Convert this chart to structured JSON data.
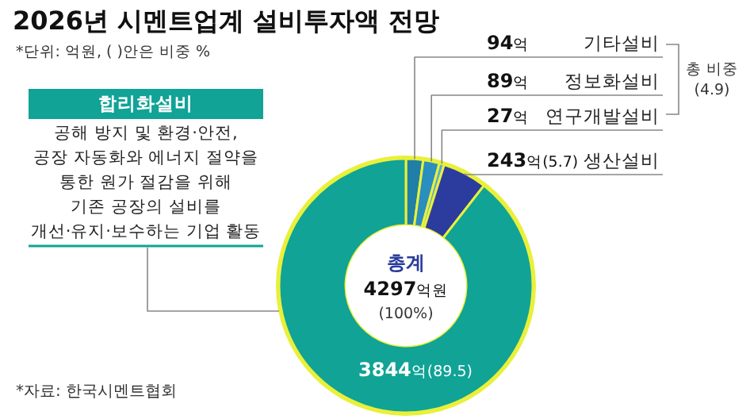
{
  "chart_data": {
    "type": "donut",
    "title": "2026년 시멘트업계 설비투자액 전망",
    "categories": [
      "기타설비",
      "정보화설비",
      "연구개발설비",
      "생산설비",
      "합리화설비"
    ],
    "values": [
      94,
      89,
      27,
      243,
      3844
    ],
    "colors": [
      "#1f7fa6",
      "#2a8fbf",
      "#5aaad8",
      "#2b3c9e",
      "#10a396"
    ],
    "value_labels": [
      "94억",
      "89억",
      "27억",
      "243억(5.7)",
      "3844억(89.5)"
    ],
    "annotations": [
      "*단위: 억원, ( )안은 비중 %",
      "공해 방지 및 환경·안전,",
      "공장 자동화와 에너지 절약을",
      "통한 원가 절감을 위해",
      "기존 공장의 설비를",
      "개선·유지·보수하는 기업 활동",
      "총 비중",
      "(4.9)",
      "총계",
      "4297억원",
      "(100%)",
      "*자료: 한국시멘트협회"
    ]
  }
}
